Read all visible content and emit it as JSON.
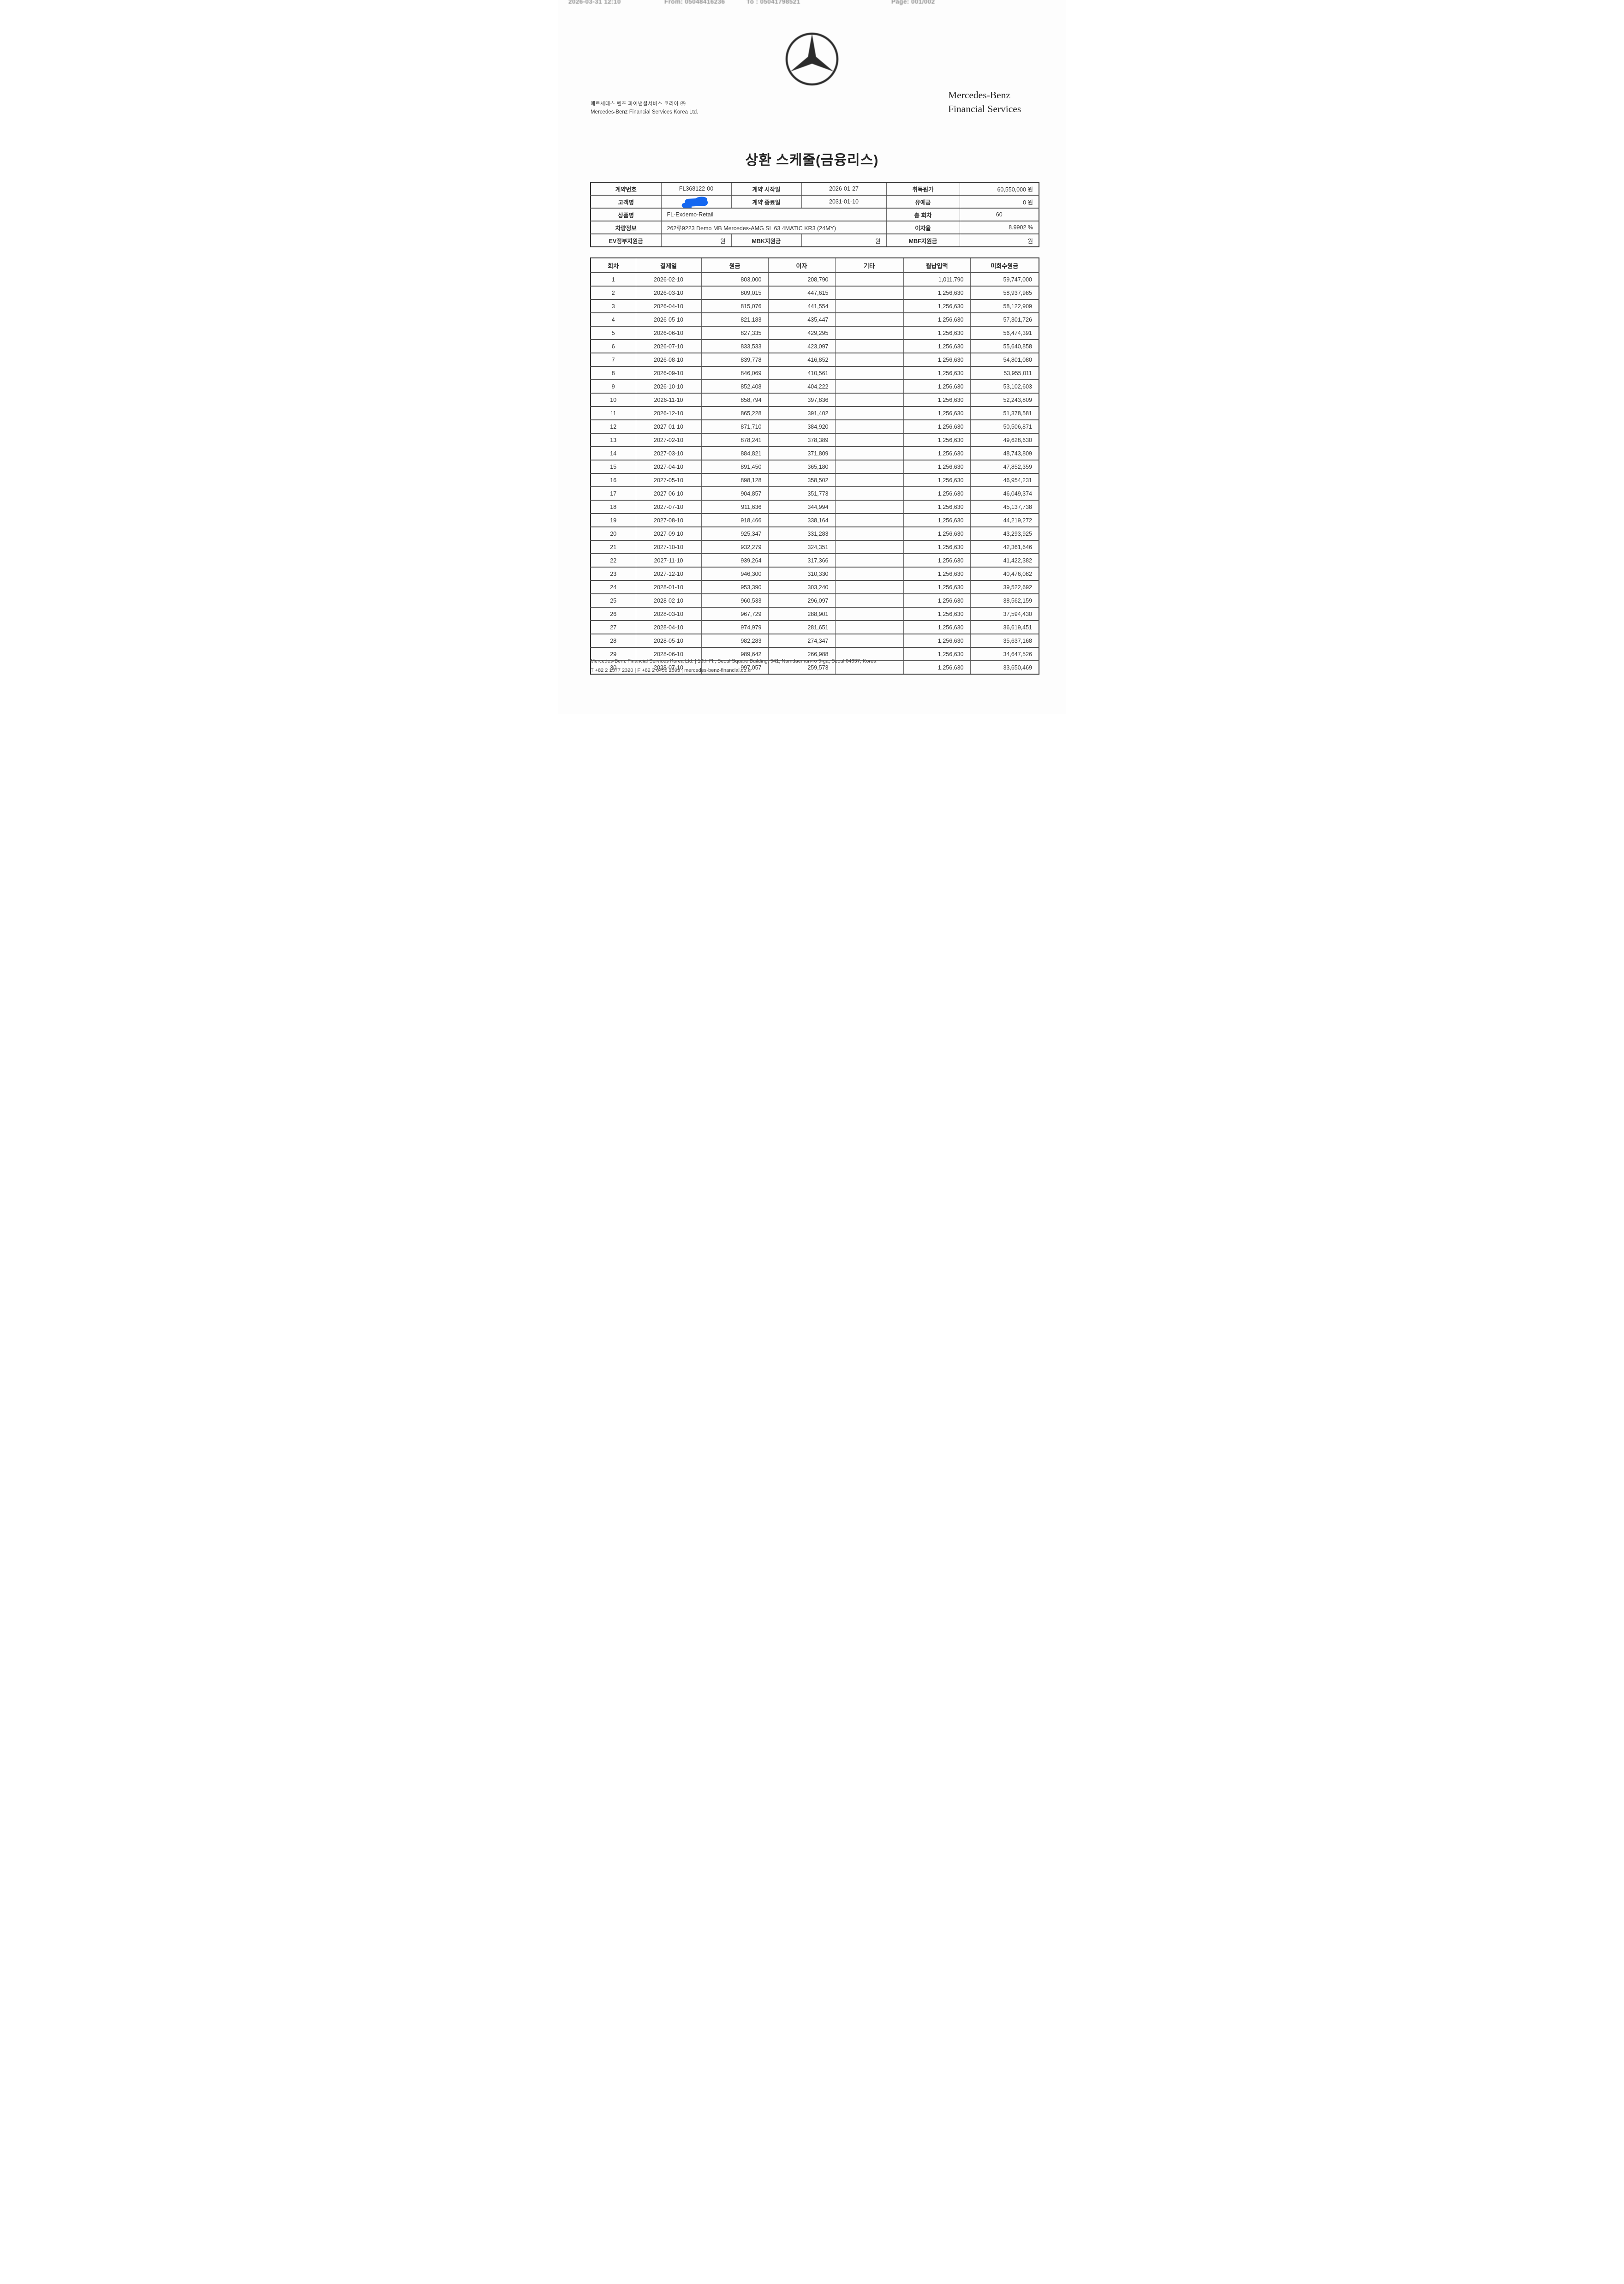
{
  "fax_header": {
    "datetime": "2026-03-31 12:10",
    "from": "From: 05048416236",
    "to": "To : 05041798521",
    "page": "Page: 001/002"
  },
  "letterhead": {
    "logo_icon": "mercedes-three-pointed-star",
    "company_name_korean": "메르세데스 벤츠 파이낸셜서비스 코리아 ㈜",
    "company_name_english": "Mercedes-Benz Financial Services Korea Ltd.",
    "brand_line1": "Mercedes-Benz",
    "brand_line2": "Financial Services"
  },
  "document_title": "상환 스케줄(금융리스)",
  "contract_info": {
    "contract_number_label": "계약번호",
    "contract_number": "FL368122-00",
    "start_date_label": "계약 시작일",
    "start_date": "2026-01-27",
    "acquisition_cost_label": "취득원가",
    "acquisition_cost": "60,550,000 원",
    "customer_name_label": "고객명",
    "customer_name_redacted": true,
    "end_date_label": "계약 종료일",
    "end_date": "2031-01-10",
    "grace_amount_label": "유예금",
    "grace_amount": "0 원",
    "product_name_label": "상품명",
    "product_name": "FL-Exdemo-Retail",
    "total_installments_label": "총 회차",
    "total_installments": "60",
    "vehicle_info_label": "차량정보",
    "vehicle_info": "262루9223 Demo MB Mercedes-AMG SL 63 4MATIC  KR3 (24MY)",
    "interest_rate_label": "이자율",
    "interest_rate": "8.9902 %",
    "ev_subsidy_label": "EV정부지원금",
    "ev_subsidy": "원",
    "mbk_subsidy_label": "MBK지원금",
    "mbk_subsidy": "원",
    "mbf_subsidy_label": "MBF지원금",
    "mbf_subsidy": "원"
  },
  "schedule_table": {
    "headers": [
      "회차",
      "결제일",
      "원금",
      "이자",
      "기타",
      "월납입액",
      "미회수원금"
    ],
    "rows": [
      [
        "1",
        "2026-02-10",
        "803,000",
        "208,790",
        "",
        "1,011,790",
        "59,747,000"
      ],
      [
        "2",
        "2026-03-10",
        "809,015",
        "447,615",
        "",
        "1,256,630",
        "58,937,985"
      ],
      [
        "3",
        "2026-04-10",
        "815,076",
        "441,554",
        "",
        "1,256,630",
        "58,122,909"
      ],
      [
        "4",
        "2026-05-10",
        "821,183",
        "435,447",
        "",
        "1,256,630",
        "57,301,726"
      ],
      [
        "5",
        "2026-06-10",
        "827,335",
        "429,295",
        "",
        "1,256,630",
        "56,474,391"
      ],
      [
        "6",
        "2026-07-10",
        "833,533",
        "423,097",
        "",
        "1,256,630",
        "55,640,858"
      ],
      [
        "7",
        "2026-08-10",
        "839,778",
        "416,852",
        "",
        "1,256,630",
        "54,801,080"
      ],
      [
        "8",
        "2026-09-10",
        "846,069",
        "410,561",
        "",
        "1,256,630",
        "53,955,011"
      ],
      [
        "9",
        "2026-10-10",
        "852,408",
        "404,222",
        "",
        "1,256,630",
        "53,102,603"
      ],
      [
        "10",
        "2026-11-10",
        "858,794",
        "397,836",
        "",
        "1,256,630",
        "52,243,809"
      ],
      [
        "11",
        "2026-12-10",
        "865,228",
        "391,402",
        "",
        "1,256,630",
        "51,378,581"
      ],
      [
        "12",
        "2027-01-10",
        "871,710",
        "384,920",
        "",
        "1,256,630",
        "50,506,871"
      ],
      [
        "13",
        "2027-02-10",
        "878,241",
        "378,389",
        "",
        "1,256,630",
        "49,628,630"
      ],
      [
        "14",
        "2027-03-10",
        "884,821",
        "371,809",
        "",
        "1,256,630",
        "48,743,809"
      ],
      [
        "15",
        "2027-04-10",
        "891,450",
        "365,180",
        "",
        "1,256,630",
        "47,852,359"
      ],
      [
        "16",
        "2027-05-10",
        "898,128",
        "358,502",
        "",
        "1,256,630",
        "46,954,231"
      ],
      [
        "17",
        "2027-06-10",
        "904,857",
        "351,773",
        "",
        "1,256,630",
        "46,049,374"
      ],
      [
        "18",
        "2027-07-10",
        "911,636",
        "344,994",
        "",
        "1,256,630",
        "45,137,738"
      ],
      [
        "19",
        "2027-08-10",
        "918,466",
        "338,164",
        "",
        "1,256,630",
        "44,219,272"
      ],
      [
        "20",
        "2027-09-10",
        "925,347",
        "331,283",
        "",
        "1,256,630",
        "43,293,925"
      ],
      [
        "21",
        "2027-10-10",
        "932,279",
        "324,351",
        "",
        "1,256,630",
        "42,361,646"
      ],
      [
        "22",
        "2027-11-10",
        "939,264",
        "317,366",
        "",
        "1,256,630",
        "41,422,382"
      ],
      [
        "23",
        "2027-12-10",
        "946,300",
        "310,330",
        "",
        "1,256,630",
        "40,476,082"
      ],
      [
        "24",
        "2028-01-10",
        "953,390",
        "303,240",
        "",
        "1,256,630",
        "39,522,692"
      ],
      [
        "25",
        "2028-02-10",
        "960,533",
        "296,097",
        "",
        "1,256,630",
        "38,562,159"
      ],
      [
        "26",
        "2028-03-10",
        "967,729",
        "288,901",
        "",
        "1,256,630",
        "37,594,430"
      ],
      [
        "27",
        "2028-04-10",
        "974,979",
        "281,651",
        "",
        "1,256,630",
        "36,619,451"
      ],
      [
        "28",
        "2028-05-10",
        "982,283",
        "274,347",
        "",
        "1,256,630",
        "35,637,168"
      ],
      [
        "29",
        "2028-06-10",
        "989,642",
        "266,988",
        "",
        "1,256,630",
        "34,647,526"
      ],
      [
        "30",
        "2028-07-10",
        "997,057",
        "259,573",
        "",
        "1,256,630",
        "33,650,469"
      ]
    ]
  },
  "footer": {
    "address_line": "Mercedes-Benz Financial Services Korea Ltd.  |  10th Fl., Seoul Square Building, 541, Namdaemun-ro 5-ga, Seoul 04637, Korea",
    "contact_line": "T +82 2 1577 2320  |  F +82 2 6456 2593  |  mercedes-benz-financial.co.kr"
  }
}
